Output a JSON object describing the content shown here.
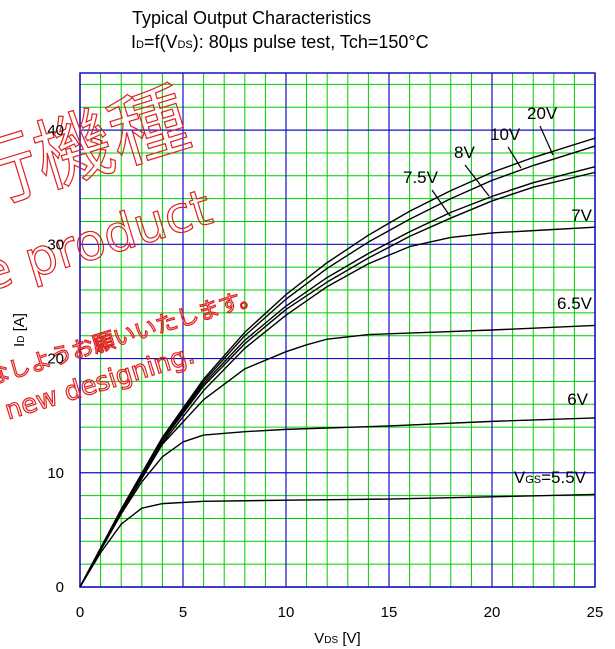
{
  "chart_data": {
    "type": "line",
    "title": "Typical Output Characteristics",
    "subtitle": "ID=f(VDS): 80µs pulse test, Tch=150°C",
    "xlabel": "VDS [V]",
    "ylabel": "ID [A]",
    "xlim": [
      0,
      25
    ],
    "ylim": [
      0,
      45
    ],
    "xticks": [
      0,
      5,
      10,
      15,
      20,
      25
    ],
    "yticks": [
      0,
      10,
      20,
      30,
      40
    ],
    "grid": true,
    "grid_color": "#00cc00",
    "major_grid_color": "#1010c8",
    "series": [
      {
        "name": "VGS=5.5V",
        "x": [
          0,
          1,
          2,
          3,
          4,
          6,
          10,
          15,
          20,
          25
        ],
        "values": [
          0,
          3.0,
          5.5,
          6.9,
          7.3,
          7.5,
          7.6,
          7.7,
          7.9,
          8.1
        ]
      },
      {
        "name": "6V",
        "x": [
          0,
          1,
          2,
          3,
          4,
          5,
          6,
          8,
          10,
          15,
          20,
          25
        ],
        "values": [
          0,
          3.2,
          6.4,
          9.2,
          11.4,
          12.7,
          13.3,
          13.6,
          13.8,
          14.1,
          14.5,
          14.8
        ]
      },
      {
        "name": "6.5V",
        "x": [
          0,
          2,
          4,
          6,
          8,
          10,
          11,
          12,
          14,
          17,
          20,
          25
        ],
        "values": [
          0,
          6.5,
          12.5,
          16.4,
          19.1,
          20.6,
          21.2,
          21.7,
          22.1,
          22.3,
          22.5,
          22.9
        ]
      },
      {
        "name": "7V",
        "x": [
          0,
          2,
          4,
          6,
          8,
          10,
          12,
          14,
          16,
          18,
          20,
          22,
          25
        ],
        "values": [
          0,
          6.6,
          12.6,
          17.2,
          20.9,
          23.8,
          26.3,
          28.3,
          29.8,
          30.6,
          31.0,
          31.2,
          31.5
        ]
      },
      {
        "name": "7.5V",
        "x": [
          0,
          2,
          4,
          6,
          8,
          10,
          12,
          14,
          16,
          18,
          20,
          22,
          25
        ],
        "values": [
          0,
          6.7,
          12.8,
          17.6,
          21.3,
          24.3,
          26.7,
          28.8,
          30.7,
          32.3,
          33.8,
          35.0,
          36.3
        ]
      },
      {
        "name": "8V",
        "x": [
          0,
          2,
          4,
          6,
          8,
          10,
          12,
          14,
          16,
          18,
          20,
          22,
          25
        ],
        "values": [
          0,
          6.7,
          12.9,
          17.8,
          21.6,
          24.6,
          27.1,
          29.2,
          31.1,
          32.8,
          34.2,
          35.4,
          36.8
        ]
      },
      {
        "name": "10V",
        "x": [
          0,
          2,
          4,
          6,
          8,
          10,
          12,
          14,
          16,
          18,
          20,
          22,
          25
        ],
        "values": [
          0,
          6.8,
          13.0,
          18.0,
          22.0,
          25.2,
          27.9,
          30.2,
          32.2,
          34.0,
          35.6,
          36.9,
          38.6
        ]
      },
      {
        "name": "20V",
        "x": [
          0,
          2,
          4,
          6,
          8,
          10,
          12,
          14,
          16,
          18,
          20,
          22,
          25
        ],
        "values": [
          0,
          6.8,
          13.1,
          18.2,
          22.3,
          25.6,
          28.4,
          30.8,
          32.9,
          34.7,
          36.3,
          37.6,
          39.3
        ]
      }
    ],
    "series_labels": [
      {
        "text": "VGS=5.5V",
        "series": "VGS=5.5V"
      },
      {
        "text": "6V",
        "series": "6V"
      },
      {
        "text": "6.5V",
        "series": "6.5V"
      },
      {
        "text": "7V",
        "series": "7V"
      },
      {
        "text": "7.5V",
        "series": "7.5V"
      },
      {
        "text": "8V",
        "series": "8V"
      },
      {
        "text": "10V",
        "series": "10V"
      },
      {
        "text": "20V",
        "series": "20V"
      }
    ]
  },
  "watermark": {
    "lines": [
      "行機種",
      "ce product",
      "なしようお願いいたします。",
      "r new designing."
    ],
    "color": "#e02020"
  }
}
